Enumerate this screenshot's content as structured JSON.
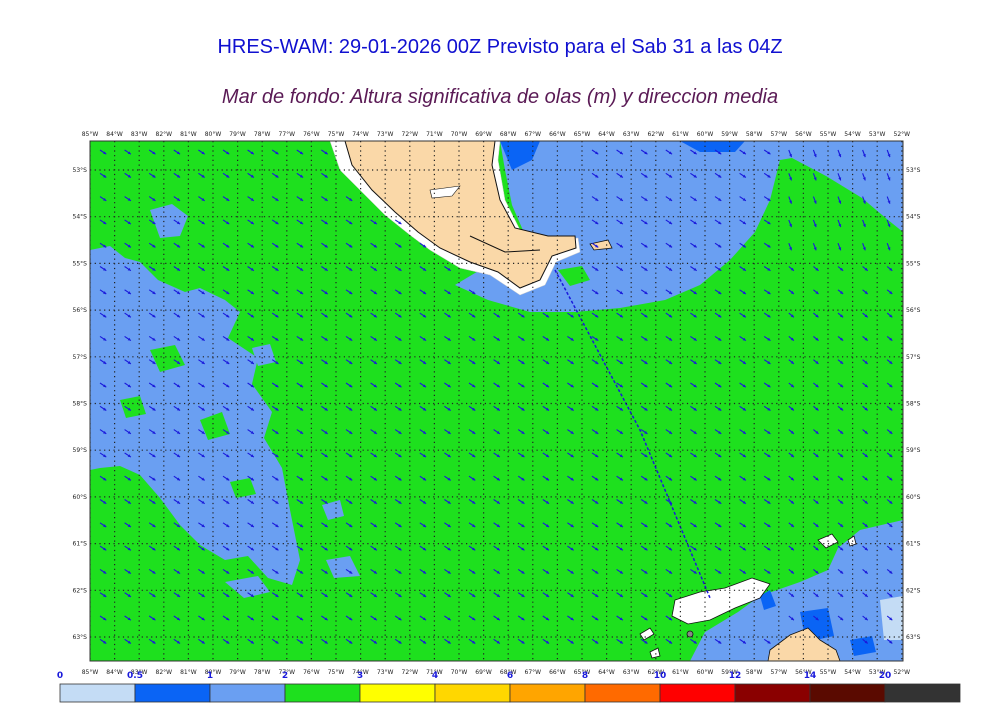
{
  "header": {
    "title": "HRES-WAM: 29-01-2026 00Z Previsto para el Sab 31 a las 04Z",
    "subtitle": "Mar de fondo: Altura significativa de olas (m) y direccion media"
  },
  "map": {
    "lon_labels": [
      "85°W",
      "84°W",
      "83°W",
      "82°W",
      "81°W",
      "80°W",
      "79°W",
      "78°W",
      "77°W",
      "76°W",
      "75°W",
      "74°W",
      "73°W",
      "72°W",
      "71°W",
      "70°W",
      "69°W",
      "68°W",
      "67°W",
      "66°W",
      "65°W",
      "64°W",
      "63°W",
      "62°W",
      "61°W",
      "60°W",
      "59°W",
      "58°W",
      "57°W",
      "56°W",
      "55°W",
      "54°W",
      "53°W",
      "52°W"
    ],
    "lat_labels": [
      "53°S",
      "54°S",
      "55°S",
      "56°S",
      "57°S",
      "58°S",
      "59°S",
      "60°S",
      "61°S",
      "62°S",
      "63°S"
    ],
    "colors": {
      "land": "#fad8a8",
      "ice": "#ffffff",
      "arrow": "#1a1adb",
      "frame": "#333333"
    }
  },
  "colorbar": {
    "levels": [
      "0",
      "0.5",
      "1",
      "2",
      "3",
      "4",
      "6",
      "8",
      "10",
      "12",
      "14",
      "20"
    ],
    "colors": [
      "#c4dcf5",
      "#0a64f5",
      "#6a9ff2",
      "#1ee01e",
      "#ffff00",
      "#ffd700",
      "#ffa500",
      "#ff6a00",
      "#ff0000",
      "#8a0000",
      "#5a0a00",
      "#333333"
    ]
  }
}
